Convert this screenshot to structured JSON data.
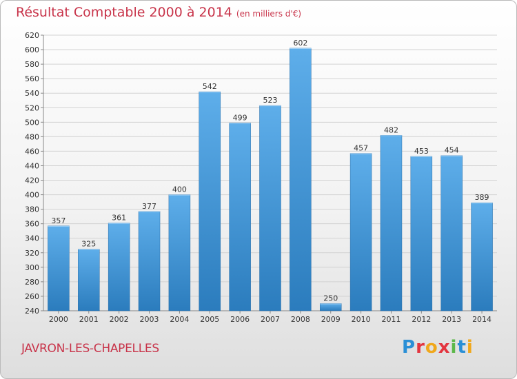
{
  "header": {
    "title": "Résultat Comptable 2000 à 2014",
    "unit": "(en milliers d'€)"
  },
  "footer": {
    "commune": "JAVRON-LES-CHAPELLES",
    "brand": "Proxiti"
  },
  "colors": {
    "bar_light": "#5eaeea",
    "bar_dark": "#2b7cbd",
    "title": "#c8344a",
    "grid": "#d2d2d2"
  },
  "chart_data": {
    "type": "bar",
    "title": "Résultat Comptable 2000 à 2014",
    "subtitle": "(en milliers d'€)",
    "xlabel": "",
    "ylabel": "",
    "categories": [
      "2000",
      "2001",
      "2002",
      "2003",
      "2004",
      "2005",
      "2006",
      "2007",
      "2008",
      "2009",
      "2010",
      "2011",
      "2012",
      "2013",
      "2014"
    ],
    "values": [
      357,
      325,
      361,
      377,
      400,
      542,
      499,
      523,
      602,
      250,
      457,
      482,
      453,
      454,
      389
    ],
    "ylim": [
      240,
      620
    ],
    "ytick_step": 20,
    "grid": true
  }
}
